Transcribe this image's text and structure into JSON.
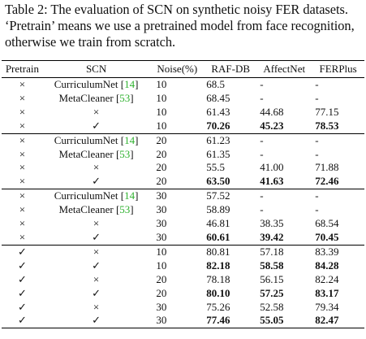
{
  "caption": "Table 2: The evaluation of SCN on synthetic noisy FER datasets. ‘Pretrain’ means we use a pretrained model from face recognition, otherwise we train from scratch.",
  "headers": {
    "pretrain": "Pretrain",
    "scn": "SCN",
    "noise": "Noise(%)",
    "rafdb": "RAF-DB",
    "affectnet": "AffectNet",
    "ferplus": "FERPlus"
  },
  "rows": [
    {
      "pretrain": "×",
      "scn": "CurriculumNet",
      "cite": "14",
      "noise": "10",
      "raf": "68.5",
      "aff": "-",
      "fer": "-",
      "bold": false
    },
    {
      "pretrain": "×",
      "scn": "MetaCleaner",
      "cite": "53",
      "noise": "10",
      "raf": "68.45",
      "aff": "-",
      "fer": "-",
      "bold": false
    },
    {
      "pretrain": "×",
      "scn": "×",
      "cite": "",
      "noise": "10",
      "raf": "61.43",
      "aff": "44.68",
      "fer": "77.15",
      "bold": false
    },
    {
      "pretrain": "×",
      "scn": "✓",
      "cite": "",
      "noise": "10",
      "raf": "70.26",
      "aff": "45.23",
      "fer": "78.53",
      "bold": true
    },
    {
      "pretrain": "×",
      "scn": "CurriculumNet",
      "cite": "14",
      "noise": "20",
      "raf": "61.23",
      "aff": "-",
      "fer": "-",
      "bold": false
    },
    {
      "pretrain": "×",
      "scn": "MetaCleaner",
      "cite": "53",
      "noise": "20",
      "raf": "61.35",
      "aff": "-",
      "fer": "-",
      "bold": false
    },
    {
      "pretrain": "×",
      "scn": "×",
      "cite": "",
      "noise": "20",
      "raf": "55.5",
      "aff": "41.00",
      "fer": "71.88",
      "bold": false
    },
    {
      "pretrain": "×",
      "scn": "✓",
      "cite": "",
      "noise": "20",
      "raf": "63.50",
      "aff": "41.63",
      "fer": "72.46",
      "bold": true
    },
    {
      "pretrain": "×",
      "scn": "CurriculumNet",
      "cite": "14",
      "noise": "30",
      "raf": "57.52",
      "aff": "-",
      "fer": "-",
      "bold": false
    },
    {
      "pretrain": "×",
      "scn": "MetaCleaner",
      "cite": "53",
      "noise": "30",
      "raf": "58.89",
      "aff": "-",
      "fer": "-",
      "bold": false
    },
    {
      "pretrain": "×",
      "scn": "×",
      "cite": "",
      "noise": "30",
      "raf": "46.81",
      "aff": "38.35",
      "fer": "68.54",
      "bold": false
    },
    {
      "pretrain": "×",
      "scn": "✓",
      "cite": "",
      "noise": "30",
      "raf": "60.61",
      "aff": "39.42",
      "fer": "70.45",
      "bold": true
    },
    {
      "pretrain": "✓",
      "scn": "×",
      "cite": "",
      "noise": "10",
      "raf": "80.81",
      "aff": "57.18",
      "fer": "83.39",
      "bold": false
    },
    {
      "pretrain": "✓",
      "scn": "✓",
      "cite": "",
      "noise": "10",
      "raf": "82.18",
      "aff": "58.58",
      "fer": "84.28",
      "bold": true
    },
    {
      "pretrain": "✓",
      "scn": "×",
      "cite": "",
      "noise": "20",
      "raf": "78.18",
      "aff": "56.15",
      "fer": "82.24",
      "bold": false
    },
    {
      "pretrain": "✓",
      "scn": "✓",
      "cite": "",
      "noise": "20",
      "raf": "80.10",
      "aff": "57.25",
      "fer": "83.17",
      "bold": true
    },
    {
      "pretrain": "✓",
      "scn": "×",
      "cite": "",
      "noise": "30",
      "raf": "75.26",
      "aff": "52.58",
      "fer": "79.34",
      "bold": false
    },
    {
      "pretrain": "✓",
      "scn": "✓",
      "cite": "",
      "noise": "30",
      "raf": "77.46",
      "aff": "55.05",
      "fer": "82.47",
      "bold": true
    }
  ]
}
